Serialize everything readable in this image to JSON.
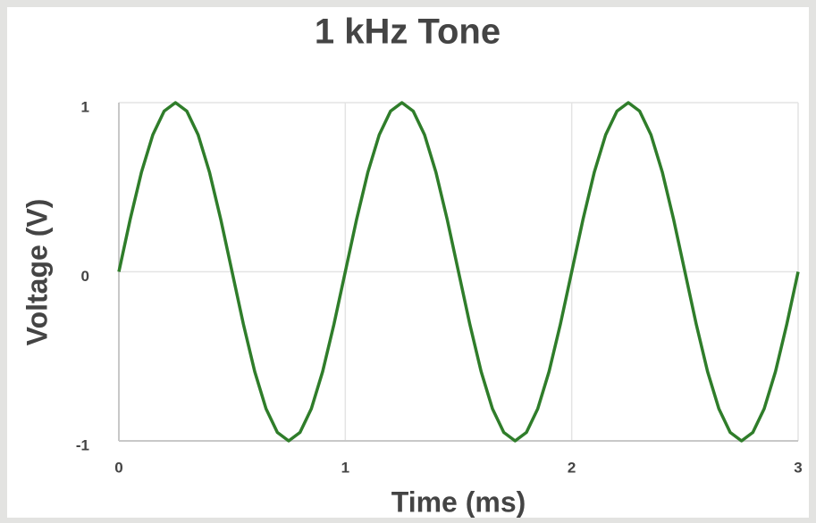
{
  "chart_data": {
    "type": "line",
    "title": "1 kHz Tone",
    "x_label": "Time (ms)",
    "y_label": "Voltage (V)",
    "x": [
      0,
      0.05,
      0.1,
      0.15,
      0.2,
      0.25,
      0.3,
      0.35,
      0.4,
      0.45,
      0.5,
      0.55,
      0.6,
      0.65,
      0.7,
      0.75,
      0.8,
      0.85,
      0.9,
      0.95,
      1,
      1.05,
      1.1,
      1.15,
      1.2,
      1.25,
      1.3,
      1.35,
      1.4,
      1.45,
      1.5,
      1.55,
      1.6,
      1.65,
      1.7,
      1.75,
      1.8,
      1.85,
      1.9,
      1.95,
      2,
      2.05,
      2.1,
      2.15,
      2.2,
      2.25,
      2.3,
      2.35,
      2.4,
      2.45,
      2.5,
      2.55,
      2.6,
      2.65,
      2.7,
      2.75,
      2.8,
      2.85,
      2.9,
      2.95,
      3
    ],
    "series": [
      {
        "name": "Voltage",
        "color": "#2f7d2a",
        "values": [
          0,
          0.31,
          0.59,
          0.81,
          0.95,
          1,
          0.95,
          0.81,
          0.59,
          0.31,
          0,
          -0.31,
          -0.59,
          -0.81,
          -0.95,
          -1,
          -0.95,
          -0.81,
          -0.59,
          -0.31,
          0,
          0.31,
          0.59,
          0.81,
          0.95,
          1,
          0.95,
          0.81,
          0.59,
          0.31,
          0,
          -0.31,
          -0.59,
          -0.81,
          -0.95,
          -1,
          -0.95,
          -0.81,
          -0.59,
          -0.31,
          0,
          0.31,
          0.59,
          0.81,
          0.95,
          1,
          0.95,
          0.81,
          0.59,
          0.31,
          0,
          -0.31,
          -0.59,
          -0.81,
          -0.95,
          -1,
          -0.95,
          -0.81,
          -0.59,
          -0.31,
          0
        ]
      }
    ],
    "xlim": [
      0,
      3
    ],
    "ylim": [
      -1,
      1
    ],
    "xticks": [
      0,
      1,
      2,
      3
    ],
    "yticks": [
      -1,
      0,
      1
    ],
    "grid": true
  }
}
